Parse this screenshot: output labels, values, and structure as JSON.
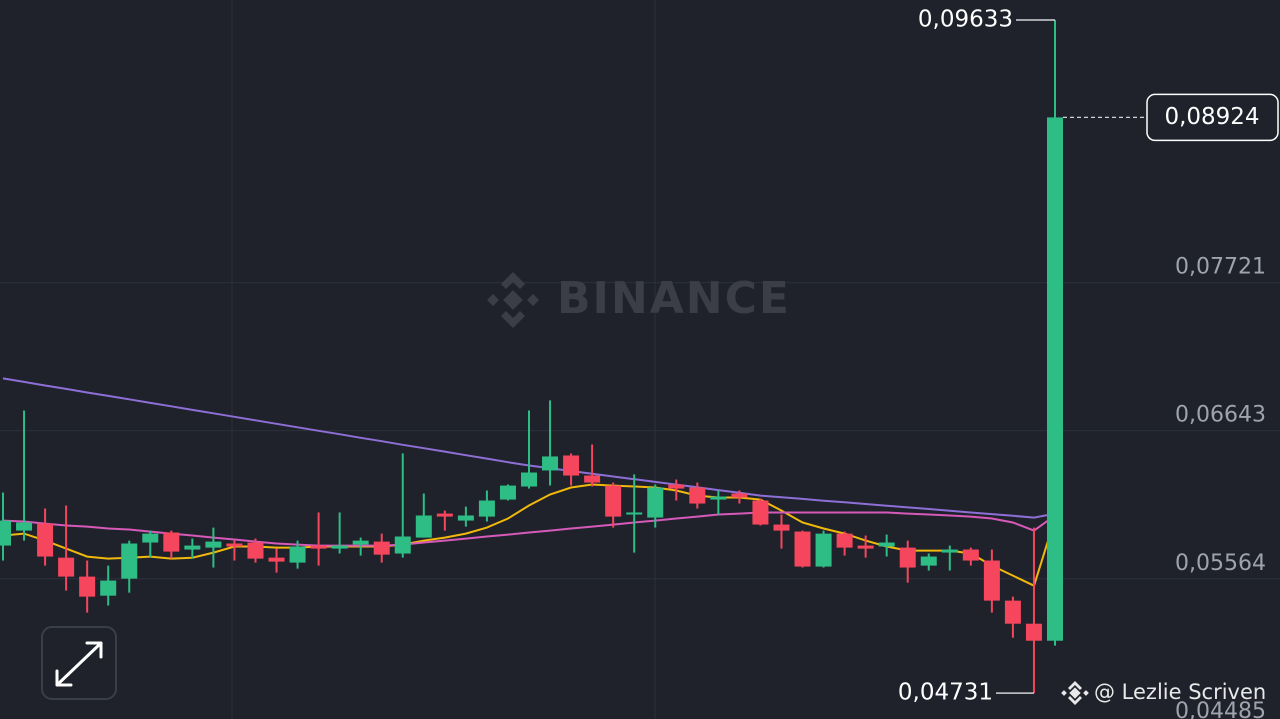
{
  "chart_data": {
    "type": "candlestick",
    "watermark": "BINANCE",
    "credit": "@ Lezlie Scriven",
    "ylim": [
      0.04543,
      0.09779
    ],
    "yticks": [
      {
        "value": 0.07721,
        "label": "0,07721"
      },
      {
        "value": 0.06643,
        "label": "0,06643"
      },
      {
        "value": 0.05564,
        "label": "0,05564"
      },
      {
        "value": 0.04485,
        "label": "0,04485"
      }
    ],
    "grid": true,
    "up_color": "#2ebd85",
    "down_color": "#f6465d",
    "open": [
      0.05806,
      0.05915,
      0.05966,
      0.05718,
      0.0558,
      0.05441,
      0.05565,
      0.05828,
      0.05901,
      0.05777,
      0.05791,
      0.05821,
      0.05828,
      0.05718,
      0.05682,
      0.05806,
      0.05784,
      0.05813,
      0.05835,
      0.05748,
      0.05864,
      0.06039,
      0.05988,
      0.06017,
      0.06141,
      0.06236,
      0.06353,
      0.06462,
      0.06316,
      0.06243,
      0.06032,
      0.0601,
      0.06251,
      0.06229,
      0.06141,
      0.06185,
      0.06134,
      0.05959,
      0.05908,
      0.05653,
      0.05893,
      0.05806,
      0.05799,
      0.05791,
      0.0566,
      0.05755,
      0.05777,
      0.05697,
      0.05405,
      0.05237,
      0.05113
    ],
    "high": [
      0.06192,
      0.0679,
      0.06076,
      0.06098,
      0.05697,
      0.0566,
      0.05842,
      0.05915,
      0.05915,
      0.05857,
      0.05937,
      0.05842,
      0.05857,
      0.05784,
      0.05842,
      0.06047,
      0.06047,
      0.05864,
      0.05893,
      0.06477,
      0.06185,
      0.06061,
      0.0609,
      0.06207,
      0.06251,
      0.0679,
      0.06863,
      0.06477,
      0.06542,
      0.06265,
      0.06324,
      0.06251,
      0.06287,
      0.06265,
      0.06207,
      0.06207,
      0.06149,
      0.06032,
      0.05915,
      0.05915,
      0.05908,
      0.05879,
      0.05886,
      0.05842,
      0.05748,
      0.05806,
      0.05791,
      0.05777,
      0.05434,
      0.05937,
      0.09633
    ],
    "low": [
      0.05697,
      0.05842,
      0.0566,
      0.05478,
      0.05318,
      0.05369,
      0.05463,
      0.05718,
      0.05711,
      0.05711,
      0.05646,
      0.05697,
      0.05682,
      0.05609,
      0.05638,
      0.0566,
      0.05748,
      0.05733,
      0.05682,
      0.05718,
      0.05864,
      0.05915,
      0.05944,
      0.05981,
      0.06134,
      0.06221,
      0.06243,
      0.06243,
      0.06236,
      0.05937,
      0.05755,
      0.05937,
      0.06134,
      0.06076,
      0.06032,
      0.06112,
      0.05952,
      0.05784,
      0.05646,
      0.05646,
      0.05733,
      0.05718,
      0.05726,
      0.05536,
      0.05624,
      0.05624,
      0.0566,
      0.05318,
      0.05135,
      0.04731,
      0.05077
    ],
    "close": [
      0.05988,
      0.05974,
      0.05726,
      0.0558,
      0.05434,
      0.05551,
      0.05821,
      0.05893,
      0.05762,
      0.05806,
      0.05835,
      0.05799,
      0.05711,
      0.05689,
      0.05799,
      0.05784,
      0.05806,
      0.05842,
      0.0574,
      0.05872,
      0.06025,
      0.06017,
      0.06025,
      0.06134,
      0.06243,
      0.06338,
      0.06455,
      0.06316,
      0.06265,
      0.06017,
      0.06047,
      0.06229,
      0.06221,
      0.06112,
      0.06163,
      0.06156,
      0.05959,
      0.05915,
      0.05653,
      0.05893,
      0.05791,
      0.05784,
      0.05828,
      0.05646,
      0.05726,
      0.05777,
      0.05697,
      0.05405,
      0.05237,
      0.05113,
      0.08924
    ],
    "series": [
      {
        "color": "#f0b90b",
        "values": [
          0.05879,
          0.05893,
          0.05842,
          0.05784,
          0.05726,
          0.05711,
          0.05718,
          0.05726,
          0.05711,
          0.05718,
          0.05755,
          0.05799,
          0.05799,
          0.05791,
          0.05791,
          0.05799,
          0.05799,
          0.05799,
          0.05799,
          0.05813,
          0.05842,
          0.05864,
          0.05893,
          0.05937,
          0.06003,
          0.06098,
          0.06178,
          0.06229,
          0.06251,
          0.06243,
          0.06236,
          0.06229,
          0.06207,
          0.0617,
          0.06156,
          0.06156,
          0.06141,
          0.06061,
          0.05974,
          0.0593,
          0.05893,
          0.05842,
          0.05799,
          0.05769,
          0.05769,
          0.05769,
          0.05748,
          0.0566,
          0.05587,
          0.05514,
          0.06003
        ]
      },
      {
        "color": "#d65ab9",
        "values": [
          0.05988,
          0.05981,
          0.05966,
          0.05952,
          0.05944,
          0.0593,
          0.05923,
          0.05908,
          0.05893,
          0.05879,
          0.05864,
          0.0585,
          0.05835,
          0.05821,
          0.05813,
          0.05806,
          0.05806,
          0.05806,
          0.05806,
          0.05813,
          0.05828,
          0.05842,
          0.05857,
          0.05872,
          0.05886,
          0.05901,
          0.05915,
          0.0593,
          0.05944,
          0.05959,
          0.05974,
          0.05988,
          0.06003,
          0.06017,
          0.06032,
          0.06039,
          0.06047,
          0.06047,
          0.06047,
          0.06047,
          0.06047,
          0.06047,
          0.06047,
          0.06039,
          0.06032,
          0.06025,
          0.06017,
          0.06003,
          0.05974,
          0.05915,
          0.06025
        ]
      },
      {
        "color": "#8e6fd6",
        "values": [
          0.07023,
          0.06998,
          0.06972,
          0.06947,
          0.06921,
          0.06896,
          0.06871,
          0.06845,
          0.0682,
          0.06794,
          0.06769,
          0.06744,
          0.06718,
          0.06693,
          0.06667,
          0.06642,
          0.06617,
          0.06591,
          0.06566,
          0.0654,
          0.06515,
          0.0649,
          0.06464,
          0.06439,
          0.06413,
          0.06389,
          0.06369,
          0.06349,
          0.06329,
          0.06309,
          0.06289,
          0.0627,
          0.0625,
          0.0623,
          0.0621,
          0.0619,
          0.0617,
          0.06158,
          0.06146,
          0.06133,
          0.06121,
          0.06109,
          0.06096,
          0.06084,
          0.06072,
          0.0606,
          0.06047,
          0.06035,
          0.06023,
          0.0601,
          0.06039
        ]
      }
    ],
    "high_annotation": {
      "value": 0.09633,
      "label": "0,09633"
    },
    "low_annotation": {
      "value": 0.04731,
      "label": "0,04731"
    },
    "last_price": {
      "value": 0.08924,
      "label": "0,08924"
    }
  }
}
